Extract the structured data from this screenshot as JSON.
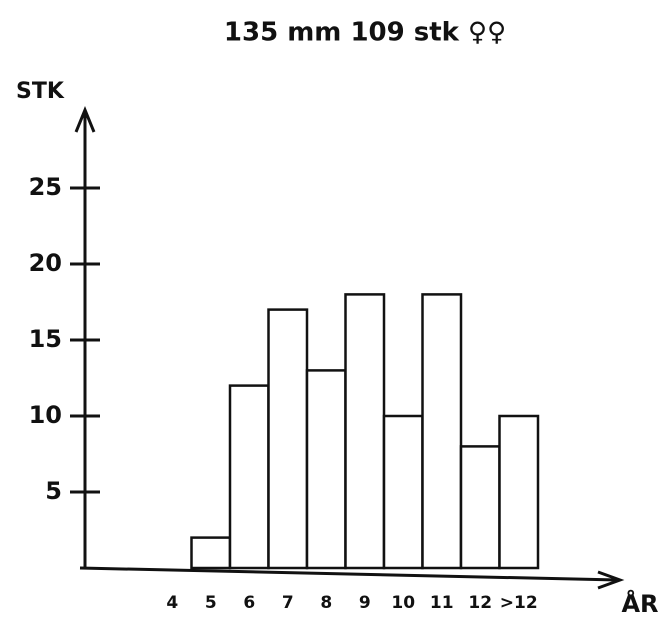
{
  "chart_data": {
    "type": "bar",
    "title": "135 mm   109 stk   ♀♀",
    "y_label": "STK",
    "x_label": "ÅR",
    "categories": [
      "4",
      "5",
      "6",
      "7",
      "8",
      "9",
      "10",
      "11",
      "12",
      ">12"
    ],
    "values": [
      0,
      2,
      12,
      17,
      13,
      18,
      10,
      18,
      8,
      10
    ],
    "color": "#ffffff",
    "ylim": [
      0,
      30
    ],
    "yticks": [
      5,
      10,
      15,
      20,
      25
    ]
  }
}
